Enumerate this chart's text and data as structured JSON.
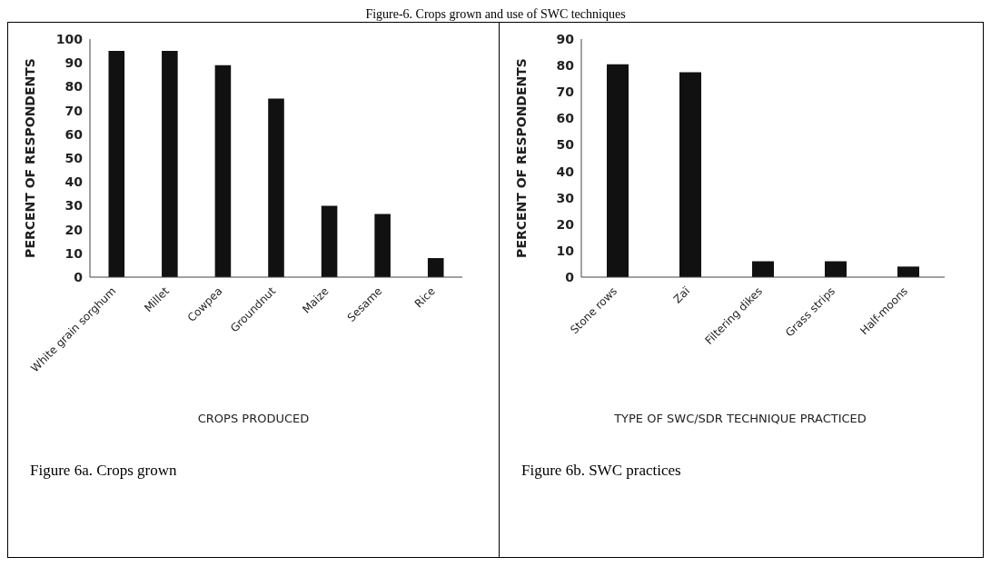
{
  "chart_data": [
    {
      "type": "bar",
      "title": "Figure-6. Crops grown and use of SWC techniques",
      "categories": [
        "White grain sorghum",
        "Millet",
        "Cowpea",
        "Groundnut",
        "Maize",
        "Sesame",
        "Rice"
      ],
      "values": [
        95,
        95,
        89,
        75,
        30,
        26.5,
        8
      ],
      "color": "#111111",
      "ylim": [
        0,
        100
      ],
      "yticks": [
        0,
        10,
        20,
        30,
        40,
        50,
        60,
        70,
        80,
        90,
        100
      ],
      "xlabel": "CROPS PRODUCED",
      "ylabel": "PERCENT OF RESPONDENTS",
      "grid": false,
      "annotations": [
        "Figure 6a. Crops grown"
      ]
    },
    {
      "type": "bar",
      "categories": [
        "Stone rows",
        "Zaï",
        "Filtering dikes",
        "Grass strips",
        "Half-moons"
      ],
      "values": [
        80.5,
        77.5,
        6,
        6,
        4
      ],
      "color": "#111111",
      "ylim": [
        0,
        90
      ],
      "yticks": [
        0,
        10,
        20,
        30,
        40,
        50,
        60,
        70,
        80,
        90
      ],
      "xlabel": "TYPE OF SWC/SDR TECHNIQUE PRACTICED",
      "ylabel": "PERCENT OF RESPONDENTS",
      "grid": false,
      "annotations": [
        "Figure 6b. SWC practices"
      ]
    }
  ]
}
